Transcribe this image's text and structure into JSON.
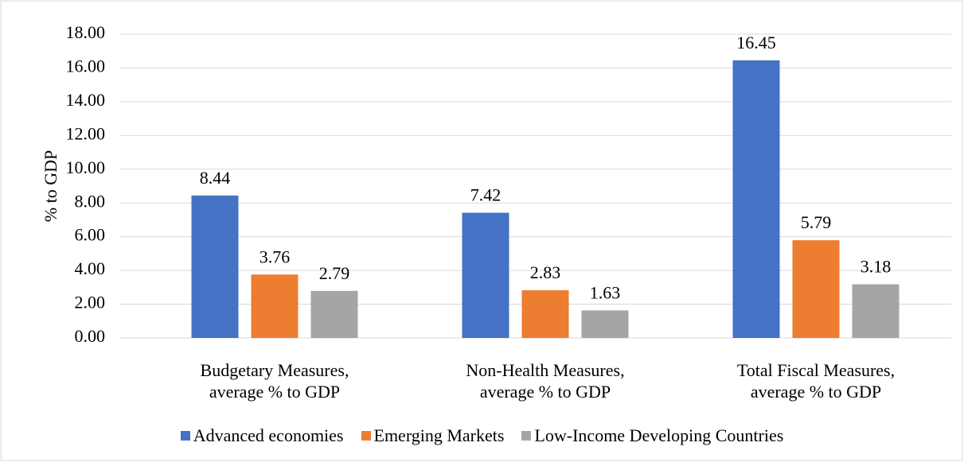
{
  "chart_data": {
    "type": "bar",
    "y_label": "% to GDP",
    "categories": [
      "Budgetary Measures, average % to GDP",
      "Non-Health Measures, average % to GDP",
      "Total Fiscal Measures, average % to GDP"
    ],
    "series": [
      {
        "name": "Advanced economies",
        "color": "#4472c4",
        "values": [
          8.44,
          7.42,
          16.45
        ]
      },
      {
        "name": "Emerging Markets",
        "color": "#ed7d31",
        "values": [
          3.76,
          2.83,
          5.79
        ]
      },
      {
        "name": "Low-Income Developing Countries",
        "color": "#a5a5a5",
        "values": [
          2.79,
          1.63,
          3.18
        ]
      }
    ],
    "ylim": [
      0,
      18
    ],
    "yticks": [
      {
        "value": 0,
        "label": "0.00"
      },
      {
        "value": 2,
        "label": "2.00"
      },
      {
        "value": 4,
        "label": "4.00"
      },
      {
        "value": 6,
        "label": "6.00"
      },
      {
        "value": 8,
        "label": "8.00"
      },
      {
        "value": 10,
        "label": "10.00"
      },
      {
        "value": 12,
        "label": "12.00"
      },
      {
        "value": 14,
        "label": "14.00"
      },
      {
        "value": 16,
        "label": "16.00"
      },
      {
        "value": 18,
        "label": "18.00"
      }
    ],
    "grid": true,
    "legend_position": "bottom"
  }
}
